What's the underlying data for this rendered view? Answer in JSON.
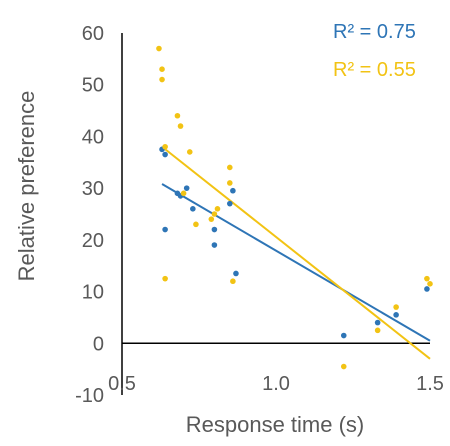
{
  "chart_data": {
    "type": "scatter",
    "xlabel": "Response time (s)",
    "ylabel": "Relative preference",
    "xlim": [
      0.5,
      1.5
    ],
    "ylim": [
      -10,
      60
    ],
    "x_ticks": [
      "0.5",
      "1.0",
      "1.5"
    ],
    "y_ticks": [
      "-10",
      "0",
      "10",
      "20",
      "30",
      "40",
      "50",
      "60"
    ],
    "grid": false,
    "series": [
      {
        "color": "#2E75B6",
        "r2_label": "R² = 0.75",
        "points": [
          [
            0.63,
            37.5
          ],
          [
            0.64,
            36.5
          ],
          [
            0.64,
            22
          ],
          [
            0.68,
            29
          ],
          [
            0.69,
            28.5
          ],
          [
            0.71,
            30
          ],
          [
            0.73,
            26
          ],
          [
            0.8,
            22
          ],
          [
            0.8,
            19
          ],
          [
            0.85,
            27
          ],
          [
            0.86,
            29.5
          ],
          [
            0.87,
            13.5
          ],
          [
            1.22,
            1.5
          ],
          [
            1.33,
            4
          ],
          [
            1.39,
            5.5
          ],
          [
            1.49,
            10.5
          ]
        ],
        "trend": {
          "x": [
            0.63,
            1.5
          ],
          "y": [
            30.8,
            0.5
          ]
        }
      },
      {
        "color": "#F2C314",
        "r2_label": "R² = 0.55",
        "points": [
          [
            0.62,
            57
          ],
          [
            0.63,
            51
          ],
          [
            0.63,
            53
          ],
          [
            0.64,
            38
          ],
          [
            0.64,
            12.5
          ],
          [
            0.68,
            44
          ],
          [
            0.69,
            42
          ],
          [
            0.7,
            29
          ],
          [
            0.72,
            37
          ],
          [
            0.74,
            23
          ],
          [
            0.79,
            24
          ],
          [
            0.8,
            25
          ],
          [
            0.81,
            26
          ],
          [
            0.85,
            31
          ],
          [
            0.85,
            34
          ],
          [
            0.86,
            12
          ],
          [
            1.22,
            -4.5
          ],
          [
            1.33,
            2.5
          ],
          [
            1.39,
            7
          ],
          [
            1.49,
            12.5
          ],
          [
            1.5,
            11.5
          ]
        ],
        "trend": {
          "x": [
            0.63,
            1.5
          ],
          "y": [
            38.0,
            -3.0
          ]
        }
      }
    ]
  }
}
